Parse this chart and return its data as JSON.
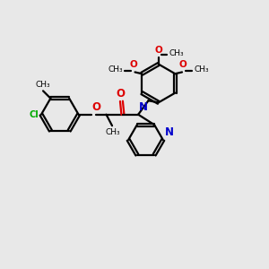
{
  "bg_color": "#e8e8e8",
  "bond_color": "#000000",
  "o_color": "#dd0000",
  "n_color": "#0000cc",
  "cl_color": "#00aa00",
  "line_width": 1.6,
  "dbo": 0.055,
  "xlim": [
    0,
    10
  ],
  "ylim": [
    0,
    10
  ],
  "ring_r": 0.7
}
